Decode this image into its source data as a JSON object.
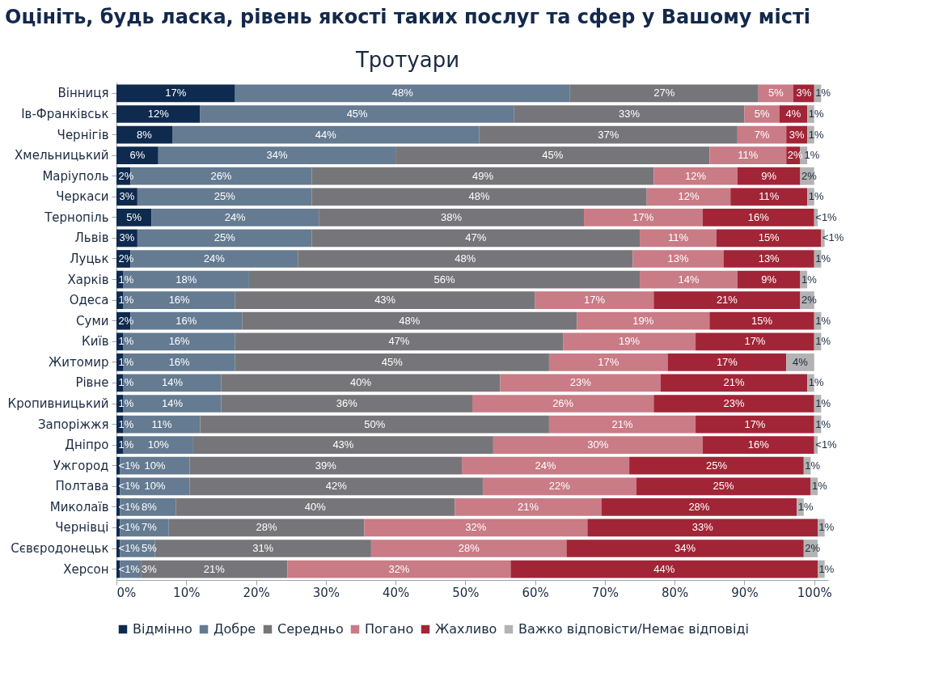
{
  "chart_data": {
    "type": "bar",
    "orientation": "horizontal",
    "stacked": true,
    "title": "Оцініть, будь ласка, рівень якості таких послуг та сфер у Вашому місті",
    "subtitle": "Тротуари",
    "categories": [
      "Вінниця",
      "Ів-Франківськ",
      "Чернігів",
      "Хмельницький",
      "Маріуполь",
      "Черкаси",
      "Тернопіль",
      "Львів",
      "Луцьк",
      "Харків",
      "Одеса",
      "Суми",
      "Київ",
      "Житомир",
      "Рівне",
      "Кропивницький",
      "Запоріжжя",
      "Дніпро",
      "Ужгород",
      "Полтава",
      "Миколаїв",
      "Чернівці",
      "Сєвєродонецьк",
      "Херсон"
    ],
    "series": [
      {
        "name": "Відмінно",
        "color": "#0e2a4f",
        "values": [
          17,
          12,
          8,
          6,
          2,
          3,
          5,
          3,
          2,
          1,
          1,
          2,
          1,
          1,
          1,
          1,
          1,
          1,
          0.5,
          0.5,
          0.5,
          0.5,
          0.5,
          0.5
        ],
        "value_labels": [
          "17%",
          "12%",
          "8%",
          "6%",
          "2%",
          "3%",
          "5%",
          "3%",
          "2%",
          "1%",
          "1%",
          "2%",
          "1%",
          "1%",
          "1%",
          "1%",
          "1%",
          "1%",
          "<1%",
          "<1%",
          "<1%",
          "<1%",
          "<1%",
          "<1%"
        ]
      },
      {
        "name": "Добре",
        "color": "#647b92",
        "values": [
          48,
          45,
          44,
          34,
          26,
          25,
          24,
          25,
          24,
          18,
          16,
          16,
          16,
          16,
          14,
          14,
          11,
          10,
          10,
          10,
          8,
          7,
          5,
          3
        ],
        "value_labels": [
          "48%",
          "45%",
          "44%",
          "34%",
          "26%",
          "25%",
          "24%",
          "25%",
          "24%",
          "18%",
          "16%",
          "16%",
          "16%",
          "16%",
          "14%",
          "14%",
          "11%",
          "10%",
          "10%",
          "10%",
          "8%",
          "7%",
          "5%",
          "3%"
        ]
      },
      {
        "name": "Середньо",
        "color": "#76767a",
        "values": [
          27,
          33,
          37,
          45,
          49,
          48,
          38,
          47,
          48,
          56,
          43,
          48,
          47,
          45,
          40,
          36,
          50,
          43,
          39,
          42,
          40,
          28,
          31,
          21
        ],
        "value_labels": [
          "27%",
          "33%",
          "37%",
          "45%",
          "49%",
          "48%",
          "38%",
          "47%",
          "48%",
          "56%",
          "43%",
          "48%",
          "47%",
          "45%",
          "40%",
          "36%",
          "50%",
          "43%",
          "39%",
          "42%",
          "40%",
          "28%",
          "31%",
          "21%"
        ]
      },
      {
        "name": "Погано",
        "color": "#c97b86",
        "values": [
          5,
          5,
          7,
          11,
          12,
          12,
          17,
          11,
          13,
          14,
          17,
          19,
          19,
          17,
          23,
          26,
          21,
          30,
          24,
          22,
          21,
          32,
          28,
          32
        ],
        "value_labels": [
          "5%",
          "5%",
          "7%",
          "11%",
          "12%",
          "12%",
          "17%",
          "11%",
          "13%",
          "14%",
          "17%",
          "19%",
          "19%",
          "17%",
          "23%",
          "26%",
          "21%",
          "30%",
          "24%",
          "22%",
          "21%",
          "32%",
          "28%",
          "32%"
        ]
      },
      {
        "name": "Жахливо",
        "color": "#a12536",
        "values": [
          3,
          4,
          3,
          2,
          9,
          11,
          16,
          15,
          13,
          9,
          21,
          15,
          17,
          17,
          21,
          23,
          17,
          16,
          25,
          25,
          28,
          33,
          34,
          44
        ],
        "value_labels": [
          "3%",
          "4%",
          "3%",
          "2%",
          "9%",
          "11%",
          "16%",
          "15%",
          "13%",
          "9%",
          "21%",
          "15%",
          "17%",
          "17%",
          "21%",
          "23%",
          "17%",
          "16%",
          "25%",
          "25%",
          "28%",
          "33%",
          "34%",
          "44%"
        ]
      },
      {
        "name": "Важко відповісти/Немає відповіді",
        "color": "#b3b3b3",
        "values": [
          1,
          1,
          1,
          1,
          2,
          1,
          0.5,
          0.5,
          1,
          1,
          2,
          1,
          1,
          4,
          1,
          1,
          1,
          0.5,
          1,
          1,
          1,
          1,
          2,
          1
        ],
        "value_labels": [
          "1%",
          "1%",
          "1%",
          "1%",
          "2%",
          "1%",
          "<1%",
          "<1%",
          "1%",
          "1%",
          "2%",
          "1%",
          "1%",
          "4%",
          "1%",
          "1%",
          "1%",
          "<1%",
          "1%",
          "1%",
          "1%",
          "1%",
          "2%",
          "1%"
        ]
      }
    ],
    "xlim": [
      0,
      102
    ],
    "xticks": [
      {
        "value": 0,
        "label": "0%"
      },
      {
        "value": 10,
        "label": "10%"
      },
      {
        "value": 20,
        "label": "20%"
      },
      {
        "value": 30,
        "label": "30%"
      },
      {
        "value": 40,
        "label": "40%"
      },
      {
        "value": 50,
        "label": "50%"
      },
      {
        "value": 60,
        "label": "60%"
      },
      {
        "value": 70,
        "label": "70%"
      },
      {
        "value": 80,
        "label": "80%"
      },
      {
        "value": 90,
        "label": "90%"
      },
      {
        "value": 100,
        "label": "100%"
      }
    ],
    "legend": "bottom"
  }
}
